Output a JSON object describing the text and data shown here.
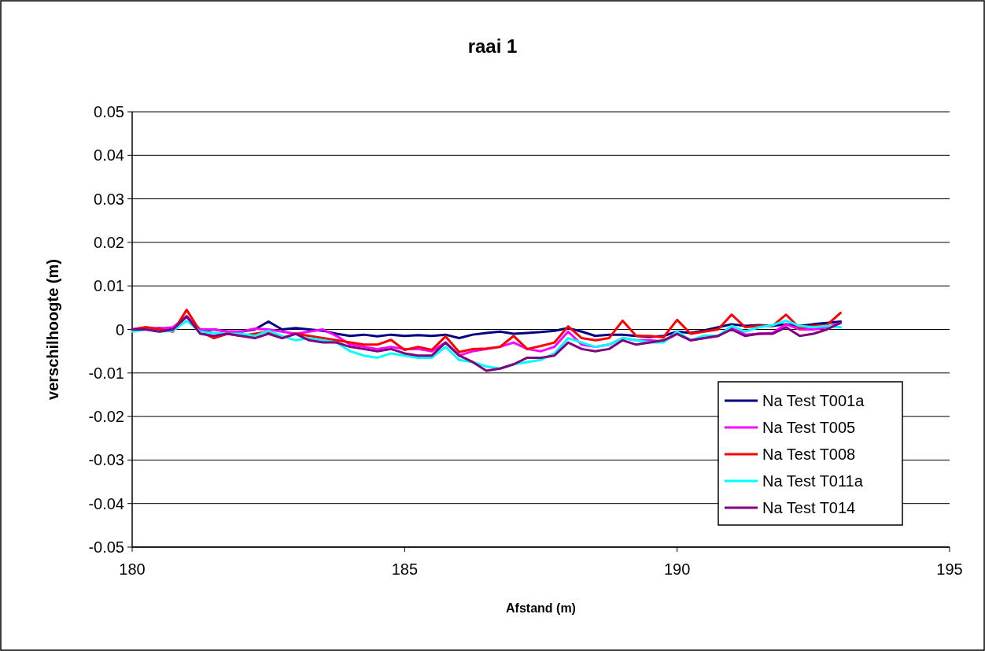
{
  "chart_data": {
    "type": "line",
    "title": "raai 1",
    "xlabel": "Afstand (m)",
    "ylabel": "verschilhoogte (m)",
    "x": [
      180,
      180.25,
      180.5,
      180.75,
      181,
      181.25,
      181.5,
      181.75,
      182,
      182.25,
      182.5,
      182.75,
      183,
      183.25,
      183.5,
      183.75,
      184,
      184.25,
      184.5,
      184.75,
      185,
      185.25,
      185.5,
      185.75,
      186,
      186.25,
      186.5,
      186.75,
      187,
      187.25,
      187.5,
      187.75,
      188,
      188.25,
      188.5,
      188.75,
      189,
      189.25,
      189.5,
      189.75,
      190,
      190.25,
      190.5,
      190.75,
      191,
      191.25,
      191.5,
      191.75,
      192,
      192.25,
      192.5,
      192.75,
      193
    ],
    "series": [
      {
        "name": "Na Test T001a",
        "color": "#000080",
        "values": [
          0,
          0,
          0.0003,
          0,
          0.003,
          -0.0005,
          0,
          -0.0005,
          -0.0005,
          0,
          0.0018,
          0,
          0.0003,
          0,
          -0.0003,
          -0.001,
          -0.0015,
          -0.0012,
          -0.0016,
          -0.0012,
          -0.0015,
          -0.0013,
          -0.0015,
          -0.0012,
          -0.002,
          -0.0012,
          -0.0008,
          -0.0005,
          -0.001,
          -0.0008,
          -0.0006,
          -0.0003,
          0.0003,
          -0.0005,
          -0.0015,
          -0.0012,
          -0.0012,
          -0.0015,
          -0.0017,
          -0.0015,
          -0.0005,
          -0.0008,
          -0.0002,
          0.0005,
          0.0012,
          0.0008,
          0.001,
          0.0008,
          0.0012,
          0.0008,
          0.0012,
          0.0015,
          0.0018
        ]
      },
      {
        "name": "Na Test T005",
        "color": "#ff00ff",
        "values": [
          0,
          0.0005,
          0.0002,
          0.0005,
          0.003,
          0,
          0,
          -0.0005,
          -0.0005,
          0.0002,
          0,
          -0.0005,
          -0.001,
          -0.0005,
          0,
          -0.0015,
          -0.0035,
          -0.004,
          -0.0045,
          -0.004,
          -0.0045,
          -0.0045,
          -0.005,
          -0.003,
          -0.006,
          -0.005,
          -0.0045,
          -0.004,
          -0.003,
          -0.0045,
          -0.005,
          -0.004,
          -0.0005,
          -0.0035,
          -0.004,
          -0.0035,
          -0.002,
          -0.0025,
          -0.0025,
          -0.0028,
          -0.001,
          -0.0025,
          -0.002,
          -0.0015,
          0.0005,
          -0.0012,
          -0.001,
          -0.0008,
          0.0012,
          0,
          0,
          0.0005,
          0.0015
        ]
      },
      {
        "name": "Na Test T008",
        "color": "#ff0000",
        "values": [
          0,
          0.0005,
          0,
          -0.0005,
          0.0045,
          -0.0005,
          -0.002,
          -0.001,
          -0.0015,
          -0.001,
          -0.0005,
          -0.002,
          -0.001,
          -0.0015,
          -0.002,
          -0.0025,
          -0.003,
          -0.0035,
          -0.0035,
          -0.0024,
          -0.0047,
          -0.004,
          -0.0047,
          -0.0016,
          -0.0052,
          -0.0045,
          -0.0044,
          -0.004,
          -0.0015,
          -0.0045,
          -0.0038,
          -0.003,
          0.0007,
          -0.002,
          -0.0025,
          -0.002,
          0.002,
          -0.0015,
          -0.0015,
          -0.0018,
          0.0022,
          -0.001,
          -0.0005,
          0,
          0.0034,
          0.0005,
          0.0008,
          0.0008,
          0.0034,
          0.0003,
          0.0008,
          0.001,
          0.0038
        ]
      },
      {
        "name": "Na Test T011a",
        "color": "#00ffff",
        "values": [
          -0.0005,
          0,
          -0.0005,
          -0.0003,
          0.002,
          -0.0005,
          -0.0008,
          -0.001,
          -0.001,
          -0.0015,
          -0.0003,
          -0.0015,
          -0.0025,
          -0.002,
          -0.0025,
          -0.003,
          -0.005,
          -0.006,
          -0.0065,
          -0.0055,
          -0.006,
          -0.0065,
          -0.0065,
          -0.004,
          -0.007,
          -0.0075,
          -0.0085,
          -0.009,
          -0.008,
          -0.0075,
          -0.007,
          -0.0055,
          -0.002,
          -0.003,
          -0.004,
          -0.0035,
          -0.002,
          -0.0025,
          -0.003,
          -0.003,
          -0.0005,
          -0.0025,
          -0.0014,
          -0.0015,
          0.0008,
          -0.0005,
          0.0005,
          0.001,
          0.002,
          0.0008,
          0.0005,
          0.0008,
          0.0005
        ]
      },
      {
        "name": "Na Test T014",
        "color": "#800080",
        "values": [
          0,
          0,
          -0.0005,
          0,
          0.003,
          -0.001,
          -0.0015,
          -0.001,
          -0.0015,
          -0.002,
          -0.001,
          -0.002,
          -0.001,
          -0.0025,
          -0.003,
          -0.003,
          -0.004,
          -0.0045,
          -0.005,
          -0.0045,
          -0.0055,
          -0.006,
          -0.006,
          -0.003,
          -0.006,
          -0.0075,
          -0.0095,
          -0.009,
          -0.008,
          -0.0065,
          -0.0065,
          -0.006,
          -0.003,
          -0.0045,
          -0.005,
          -0.0045,
          -0.0025,
          -0.0035,
          -0.003,
          -0.0025,
          -0.001,
          -0.0025,
          -0.002,
          -0.0015,
          0,
          -0.0015,
          -0.001,
          -0.001,
          0.0005,
          -0.0015,
          -0.001,
          0,
          0.0015
        ]
      }
    ],
    "xlim": [
      180,
      195
    ],
    "xticks": [
      180,
      185,
      190,
      195
    ],
    "ylim": [
      -0.05,
      0.05
    ],
    "yticks": [
      -0.05,
      -0.04,
      -0.03,
      -0.02,
      -0.01,
      0,
      0.01,
      0.02,
      0.03,
      0.04,
      0.05
    ],
    "grid": "y",
    "legend": "bottom right",
    "marker": "none",
    "line_style": "solid"
  }
}
